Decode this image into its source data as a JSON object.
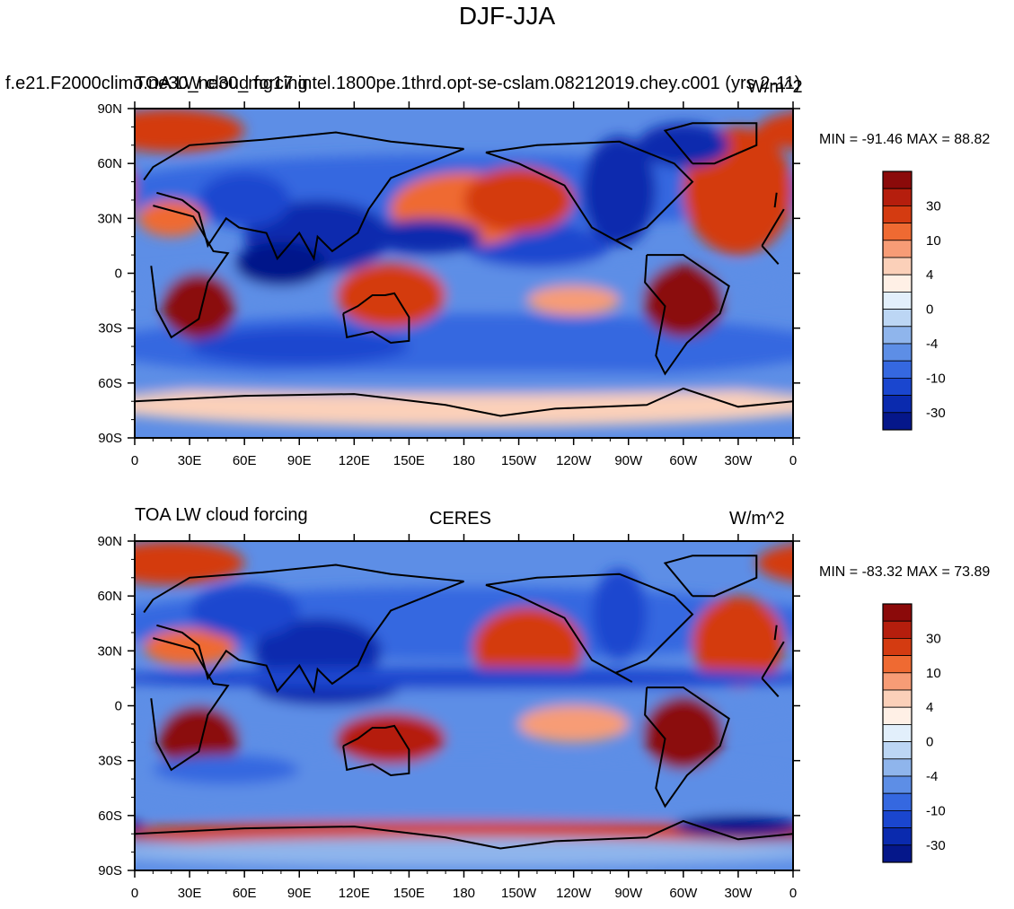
{
  "title": "DJF-JJA",
  "panels": [
    {
      "left_label": "TOA LW cloud forcing",
      "center_label": "f.e21.F2000climo.ne30_ne30_mg17.intel.1800pe.1thrd.opt-se-cslam.08212019.chey.c001 (yrs 2-11)",
      "right_label": "W/m^2",
      "minmax": "MIN = -91.46 MAX =  88.82"
    },
    {
      "left_label": "TOA LW cloud forcing",
      "center_label": "CERES",
      "right_label": "W/m^2",
      "minmax": "MIN = -83.32 MAX =  73.89"
    }
  ],
  "colorbar": {
    "labels": [
      "30",
      "10",
      "4",
      "0",
      "-4",
      "-10",
      "-30"
    ],
    "colors": [
      "#8b0a0a",
      "#b51e0d",
      "#d43b11",
      "#ef6a32",
      "#f79c76",
      "#fbd0b9",
      "#fff0e6",
      "#e2effb",
      "#bcd6f4",
      "#8fb5ec",
      "#5d8ee6",
      "#3568e0",
      "#1a46cf",
      "#0a2aae",
      "#05178a"
    ]
  },
  "chart_data": [
    {
      "type": "heatmap",
      "title": "TOA LW cloud forcing — f.e21.F2000climo.ne30_ne30_mg17.intel.1800pe.1thrd.opt-se-cslam.08212019.chey.c001 (yrs 2-11)",
      "units": "W/m^2",
      "min": -91.46,
      "max": 88.82,
      "x_ticks": [
        "0",
        "30E",
        "60E",
        "90E",
        "120E",
        "150E",
        "180",
        "150W",
        "120W",
        "90W",
        "60W",
        "30W",
        "0"
      ],
      "y_ticks": [
        "90N",
        "60N",
        "30N",
        "0",
        "30S",
        "60S",
        "90S"
      ],
      "xlim": [
        0,
        360
      ],
      "ylim": [
        -90,
        90
      ],
      "contour_levels": [
        -40,
        -30,
        -20,
        -10,
        -6,
        -4,
        -2,
        0,
        2,
        4,
        6,
        10,
        20,
        30,
        40
      ]
    },
    {
      "type": "heatmap",
      "title": "TOA LW cloud forcing — CERES",
      "units": "W/m^2",
      "min": -83.32,
      "max": 73.89,
      "x_ticks": [
        "0",
        "30E",
        "60E",
        "90E",
        "120E",
        "150E",
        "180",
        "150W",
        "120W",
        "90W",
        "60W",
        "30W",
        "0"
      ],
      "y_ticks": [
        "90N",
        "60N",
        "30N",
        "0",
        "30S",
        "60S",
        "90S"
      ],
      "xlim": [
        0,
        360
      ],
      "ylim": [
        -90,
        90
      ],
      "contour_levels": [
        -40,
        -30,
        -20,
        -10,
        -6,
        -4,
        -2,
        0,
        2,
        4,
        6,
        10,
        20,
        30,
        40
      ]
    }
  ]
}
